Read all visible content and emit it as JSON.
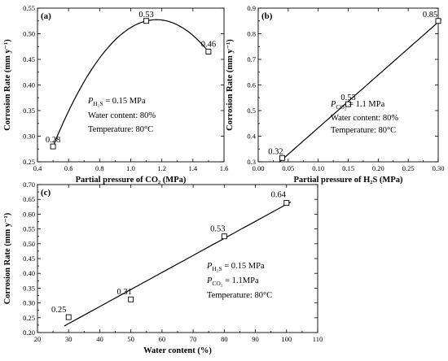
{
  "chart_data": [
    {
      "panel": "(a)",
      "type": "scatter",
      "fit": "quadratic",
      "x": [
        0.5,
        1.1,
        1.5
      ],
      "y": [
        0.28,
        0.525,
        0.465
      ],
      "data_labels": [
        "0.28",
        "0.53",
        "0.46"
      ],
      "xlabel": "Partial pressure of CO₂ (MPa)",
      "ylabel": "Corrosion Rate (mm y⁻¹)",
      "xlim": [
        0.4,
        1.6
      ],
      "ylim": [
        0.25,
        0.55
      ],
      "xticks": [
        "0.4",
        "0.6",
        "0.8",
        "1.0",
        "1.2",
        "1.4",
        "1.6"
      ],
      "yticks": [
        "0.25",
        "0.30",
        "0.35",
        "0.40",
        "0.45",
        "0.50",
        "0.55"
      ],
      "annotations": [
        "Pʜ₂ₛ = 0.15 MPa",
        "Water content: 80%",
        "Temperature: 80°C"
      ],
      "annot_parts": [
        {
          "sym": "P",
          "sub": "H₂S",
          "rest": " = 0.15 MPa"
        },
        {
          "text": "Water content: 80%"
        },
        {
          "text": "Temperature: 80°C"
        }
      ],
      "grid": false
    },
    {
      "panel": "(b)",
      "type": "scatter",
      "fit": "linear",
      "x": [
        0.04,
        0.15,
        0.3
      ],
      "y": [
        0.315,
        0.525,
        0.85
      ],
      "data_labels": [
        "0.32",
        "0.53",
        "0.85"
      ],
      "xlabel": "Partial pressure of H₂S (MPa)",
      "ylabel": "Corrosion Rate (mm y⁻¹)",
      "xlim": [
        0.0,
        0.3
      ],
      "ylim": [
        0.3,
        0.9
      ],
      "xticks": [
        "0.00",
        "0.05",
        "0.10",
        "0.15",
        "0.20",
        "0.25",
        "0.30"
      ],
      "yticks": [
        "0.3",
        "0.4",
        "0.5",
        "0.6",
        "0.7",
        "0.8",
        "0.9"
      ],
      "annot_parts": [
        {
          "sym": "P",
          "sub": "CO₂",
          "rest": " = 1.1 MPa"
        },
        {
          "text": "Water content: 80%"
        },
        {
          "text": "Temperature: 80°C"
        }
      ],
      "grid": false
    },
    {
      "panel": "(c)",
      "type": "scatter",
      "fit": "linear",
      "x": [
        30,
        50,
        80,
        100
      ],
      "y": [
        0.252,
        0.312,
        0.525,
        0.638
      ],
      "data_labels": [
        "0.25",
        "0.31",
        "0.53",
        "0.64"
      ],
      "xlabel": "Water content (%)",
      "ylabel": "Corrosion Rate (mm y⁻¹)",
      "xlim": [
        20,
        110
      ],
      "ylim": [
        0.2,
        0.7
      ],
      "xticks": [
        "20",
        "30",
        "40",
        "50",
        "60",
        "70",
        "80",
        "90",
        "100",
        "110"
      ],
      "yticks": [
        "0.20",
        "0.25",
        "0.30",
        "0.35",
        "0.40",
        "0.45",
        "0.50",
        "0.55",
        "0.60",
        "0.65",
        "0.70"
      ],
      "annot_parts": [
        {
          "sym": "P",
          "sub": "H₂S",
          "rest": " = 0.15 MPa"
        },
        {
          "sym": "P",
          "sub": "CO₂",
          "rest": " = 1.1MPa"
        },
        {
          "text": "Temperature: 80°C"
        }
      ],
      "grid": false
    }
  ]
}
